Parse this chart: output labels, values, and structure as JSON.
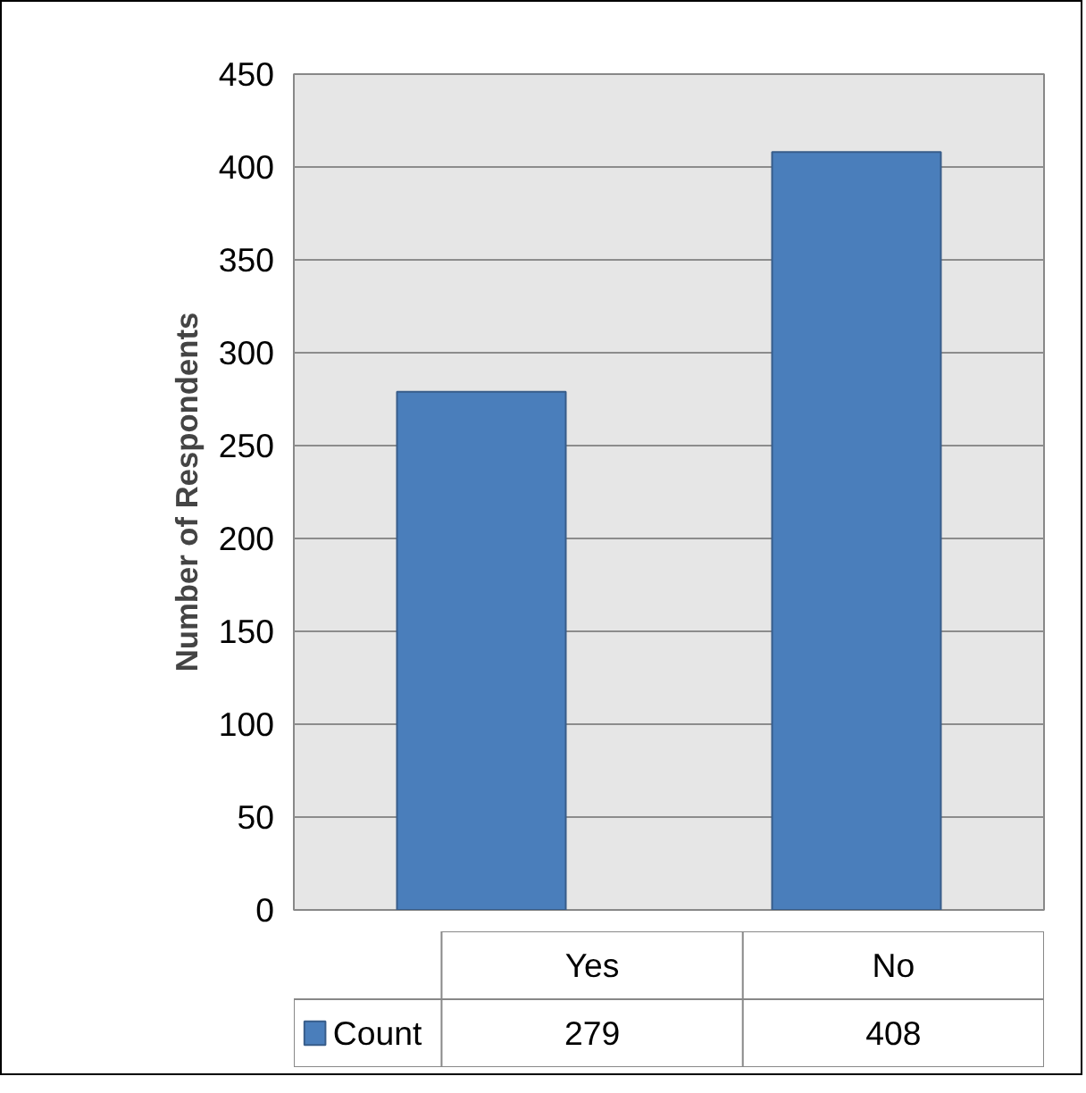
{
  "chart_data": {
    "type": "bar",
    "categories": [
      "Yes",
      "No"
    ],
    "series": [
      {
        "name": "Count",
        "color": "#4a7ebb",
        "values": [
          279,
          408
        ]
      }
    ],
    "ylabel": "Number of Respondents",
    "ylim": [
      0,
      450
    ],
    "yticks": [
      0,
      50,
      100,
      150,
      200,
      250,
      300,
      350,
      400,
      450
    ],
    "grid": "y",
    "data_labels": true,
    "legend": "bottom"
  }
}
